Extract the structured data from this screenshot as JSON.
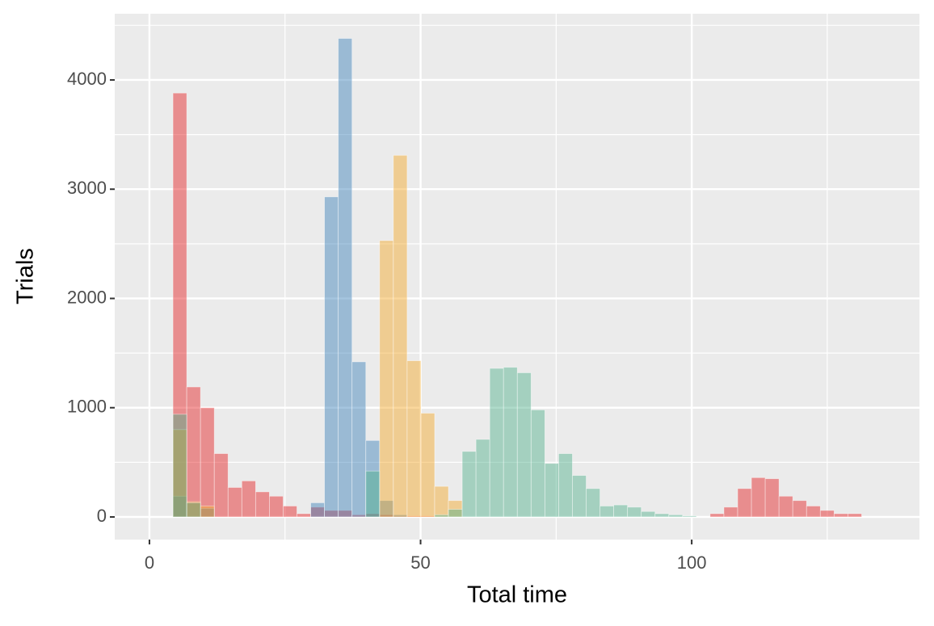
{
  "chart_data": {
    "type": "histogram",
    "x_label": "Total time",
    "y_label": "Trials",
    "bins": [
      1.8,
      4.34,
      6.88,
      9.42,
      11.96,
      14.5,
      17.04,
      19.58,
      22.12,
      24.66,
      27.2,
      29.74,
      32.28,
      34.82,
      37.36,
      39.9,
      42.44,
      44.98,
      47.52,
      50.06,
      52.6,
      55.14,
      57.68,
      60.22,
      62.76,
      65.3,
      67.84,
      70.38,
      72.92,
      75.46,
      78.0,
      80.54,
      83.08,
      85.62,
      88.16,
      90.7,
      93.24,
      95.78,
      98.32,
      100.86,
      103.4,
      105.94,
      108.48,
      111.02,
      113.56,
      116.1,
      118.64,
      121.18,
      123.72,
      126.26,
      128.8,
      131.34,
      133.88
    ],
    "series": [
      {
        "color": "#e41a1c",
        "values": [
          0,
          3880,
          1190,
          1000,
          580,
          270,
          330,
          230,
          190,
          100,
          30,
          90,
          60,
          60,
          20,
          30,
          20,
          10,
          10,
          10,
          0,
          0,
          0,
          0,
          0,
          0,
          0,
          0,
          0,
          0,
          0,
          0,
          0,
          0,
          0,
          0,
          0,
          0,
          0,
          0,
          30,
          90,
          260,
          360,
          350,
          190,
          150,
          100,
          60,
          30,
          30,
          0
        ]
      },
      {
        "color": "#377eb8",
        "values": [
          0,
          190,
          0,
          80,
          0,
          0,
          0,
          0,
          0,
          0,
          0,
          130,
          2930,
          4380,
          1420,
          700,
          150,
          20,
          0,
          0,
          0,
          0,
          0,
          0,
          0,
          0,
          0,
          0,
          0,
          0,
          0,
          0,
          0,
          0,
          0,
          0,
          0,
          0,
          0,
          0,
          0,
          0,
          0,
          0,
          0,
          0,
          0,
          0,
          0,
          0,
          0,
          0
        ]
      },
      {
        "color": "#f5a623",
        "values": [
          0,
          800,
          140,
          100,
          0,
          0,
          0,
          0,
          0,
          0,
          0,
          0,
          0,
          0,
          0,
          0,
          2530,
          3310,
          1430,
          950,
          280,
          150,
          0,
          0,
          0,
          0,
          0,
          0,
          0,
          0,
          0,
          0,
          0,
          0,
          0,
          0,
          0,
          0,
          0,
          0,
          0,
          0,
          0,
          0,
          0,
          0,
          0,
          0,
          0,
          0,
          0,
          0
        ]
      },
      {
        "color": "#4daf8a",
        "values": [
          0,
          940,
          130,
          0,
          0,
          0,
          0,
          0,
          0,
          0,
          0,
          0,
          0,
          0,
          0,
          420,
          0,
          0,
          0,
          0,
          20,
          70,
          600,
          710,
          1360,
          1370,
          1320,
          980,
          490,
          580,
          380,
          260,
          100,
          110,
          90,
          50,
          30,
          20,
          10,
          0,
          0,
          0,
          0,
          0,
          0,
          0,
          0,
          0,
          0,
          0,
          0,
          0
        ]
      }
    ],
    "xlim": [
      -6.4,
      142
    ],
    "ylim": [
      -207,
      4606
    ],
    "xticks": [
      0,
      50,
      100
    ],
    "yticks": [
      0,
      1000,
      2000,
      3000,
      4000
    ],
    "grid": true
  }
}
